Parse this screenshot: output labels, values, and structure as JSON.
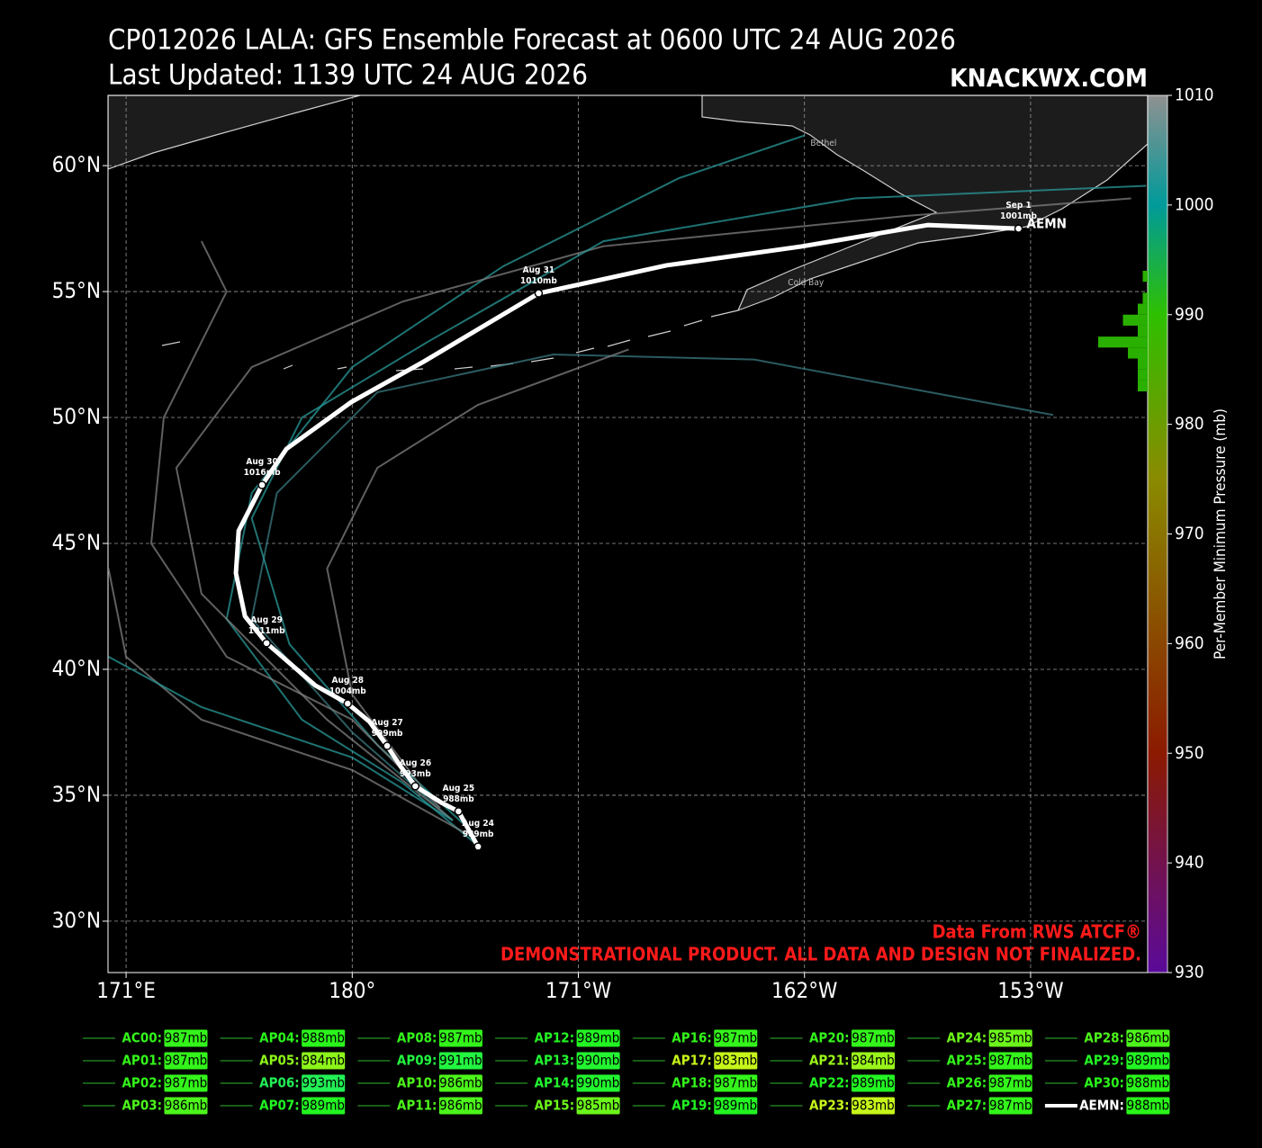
{
  "title": "CP012026 LALA: GFS Ensemble Forecast at 0600 UTC 24 AUG 2026",
  "subtitle": "Last Updated: 1139 UTC 24 AUG 2026",
  "watermark": "KNACKWX.COM",
  "credit": "Data From RWS ATCF®",
  "disclaimer": "DEMONSTRATIONAL PRODUCT. ALL DATA AND DESIGN NOT FINALIZED.",
  "chart_data": {
    "type": "track-map",
    "xlim": [
      170.28,
      211.66
    ],
    "ylim": [
      27.96,
      62.79
    ],
    "grid": true,
    "xticks": [
      {
        "value": 171,
        "label": "171°E"
      },
      {
        "value": 180,
        "label": "180°"
      },
      {
        "value": 189,
        "label": "171°W"
      },
      {
        "value": 198,
        "label": "162°W"
      },
      {
        "value": 207,
        "label": "153°W"
      }
    ],
    "yticks": [
      {
        "value": 30,
        "label": "30°N"
      },
      {
        "value": 35,
        "label": "35°N"
      },
      {
        "value": 40,
        "label": "40°N"
      },
      {
        "value": 45,
        "label": "45°N"
      },
      {
        "value": 50,
        "label": "50°N"
      },
      {
        "value": 55,
        "label": "55°N"
      },
      {
        "value": 60,
        "label": "60°N"
      }
    ],
    "places": [
      {
        "name": "Bethel",
        "lon": 198.24,
        "lat": 60.89
      },
      {
        "name": "Cold Bay",
        "lon": 197.34,
        "lat": 55.36
      }
    ],
    "mean_track": {
      "name": "AEMN",
      "color": "#ffffff",
      "lon": [
        185.01,
        184.23,
        183.54,
        182.51,
        181.93,
        181.39,
        180.68,
        179.82,
        178.53,
        177.09,
        176.59,
        175.73,
        175.37,
        175.48,
        176.41,
        177.38,
        179.96,
        182.83,
        187.42,
        192.51,
        197.88,
        202.9,
        206.52
      ],
      "lat": [
        32.96,
        34.36,
        34.71,
        35.36,
        36.14,
        36.96,
        37.93,
        38.64,
        39.36,
        40.61,
        41.04,
        42.11,
        43.82,
        45.5,
        47.32,
        48.75,
        50.61,
        52.21,
        54.93,
        56.04,
        56.79,
        57.64,
        57.5
      ],
      "dates": [
        "Aug 24",
        "Aug 25",
        null,
        "Aug 26",
        null,
        "Aug 27",
        null,
        "Aug 28",
        null,
        null,
        "Aug 29",
        null,
        null,
        null,
        "Aug 30",
        null,
        null,
        null,
        "Aug 31",
        null,
        null,
        null,
        "Sep 1"
      ],
      "pressure": [
        989,
        988,
        null,
        993,
        null,
        999,
        null,
        1004,
        null,
        null,
        1011,
        null,
        null,
        null,
        1016,
        null,
        null,
        null,
        1010,
        null,
        null,
        null,
        1001
      ],
      "pressure_labels": [
        "989mb",
        "988mb",
        null,
        "993mb",
        null,
        "999mb",
        null,
        "1004mb",
        null,
        null,
        "1011mb",
        null,
        null,
        null,
        "1016mb",
        null,
        null,
        null,
        "1010mb",
        null,
        null,
        null,
        "1001mb"
      ]
    },
    "member_tracks": [
      {
        "color": "#2a9a9a",
        "lon": [
          185.0,
          182,
          178,
          175,
          176,
          180,
          186,
          193,
          198
        ],
        "lat": [
          33,
          35.5,
          38,
          42,
          47,
          52,
          56,
          59.5,
          61.2
        ]
      },
      {
        "color": "#808080",
        "lon": [
          184.5,
          180,
          174,
          171,
          170.3
        ],
        "lat": [
          33.5,
          36,
          38,
          40.5,
          44
        ]
      },
      {
        "color": "#3a7a80",
        "lon": [
          184,
          180,
          176,
          177,
          181,
          188,
          196,
          203,
          207.9
        ],
        "lat": [
          34,
          37.5,
          42,
          47,
          51,
          52.5,
          52.3,
          51,
          50.1
        ]
      },
      {
        "color": "#808080",
        "lon": [
          184,
          179,
          174,
          173,
          176,
          182,
          190,
          202,
          211
        ],
        "lat": [
          34,
          38,
          43,
          48,
          52,
          54.6,
          56.8,
          58,
          58.7
        ]
      },
      {
        "color": "#2a9a9a",
        "lon": [
          184.5,
          181,
          177.5,
          176,
          178,
          183,
          190,
          200,
          211.6
        ],
        "lat": [
          33.8,
          37,
          41,
          46,
          50,
          53,
          57,
          58.7,
          59.2
        ]
      },
      {
        "color": "#808080",
        "lon": [
          183.5,
          180,
          175,
          172,
          172.5,
          175,
          174
        ],
        "lat": [
          34.5,
          38,
          40.5,
          45,
          50,
          55,
          57
        ]
      },
      {
        "color": "#2a9a9a",
        "lon": [
          184,
          180,
          174,
          170.3
        ],
        "lat": [
          34,
          36.5,
          38.5,
          40.5
        ]
      },
      {
        "color": "#808080",
        "lon": [
          183,
          180,
          179,
          181,
          185,
          191
        ],
        "lat": [
          35,
          39,
          44,
          48,
          50.5,
          52.7
        ]
      }
    ],
    "colorbar": {
      "label": "Per-Member Minimum Pressure (mb)",
      "lim": [
        930,
        1010
      ],
      "ticks": [
        930,
        940,
        950,
        960,
        970,
        980,
        990,
        1000,
        1010
      ],
      "stops": [
        {
          "value": 930,
          "color": "#5a0a9a"
        },
        {
          "value": 950,
          "color": "#8b1a00"
        },
        {
          "value": 975,
          "color": "#8a8a00"
        },
        {
          "value": 990,
          "color": "#2ec000"
        },
        {
          "value": 1000,
          "color": "#009a9a"
        },
        {
          "value": 1010,
          "color": "#909090"
        }
      ]
    },
    "histogram": {
      "color": "#2ab000",
      "bins": [
        983,
        984,
        985,
        986,
        987,
        988,
        989,
        990,
        991,
        992,
        993,
        994
      ],
      "counts": [
        2,
        2,
        2,
        4,
        10,
        2,
        5,
        2,
        1,
        0,
        1
      ]
    },
    "legend": {
      "members": [
        {
          "name": "AC00:",
          "value": 987,
          "value_label": "987mb",
          "color": "#33f51a"
        },
        {
          "name": "AP01:",
          "value": 987,
          "value_label": "987mb",
          "color": "#33f51a"
        },
        {
          "name": "AP02:",
          "value": 987,
          "value_label": "987mb",
          "color": "#33f51a"
        },
        {
          "name": "AP03:",
          "value": 986,
          "value_label": "986mb",
          "color": "#4cf51a"
        },
        {
          "name": "AP04:",
          "value": 988,
          "value_label": "988mb",
          "color": "#2af51a"
        },
        {
          "name": "AP05:",
          "value": 984,
          "value_label": "984mb",
          "color": "#8cf51a"
        },
        {
          "name": "AP06:",
          "value": 993,
          "value_label": "993mb",
          "color": "#22f055"
        },
        {
          "name": "AP07:",
          "value": 989,
          "value_label": "989mb",
          "color": "#22f522"
        },
        {
          "name": "AP08:",
          "value": 987,
          "value_label": "987mb",
          "color": "#33f51a"
        },
        {
          "name": "AP09:",
          "value": 991,
          "value_label": "991mb",
          "color": "#22f540"
        },
        {
          "name": "AP10:",
          "value": 986,
          "value_label": "986mb",
          "color": "#4cf51a"
        },
        {
          "name": "AP11:",
          "value": 986,
          "value_label": "986mb",
          "color": "#4cf51a"
        },
        {
          "name": "AP12:",
          "value": 989,
          "value_label": "989mb",
          "color": "#22f522"
        },
        {
          "name": "AP13:",
          "value": 990,
          "value_label": "990mb",
          "color": "#22f530"
        },
        {
          "name": "AP14:",
          "value": 990,
          "value_label": "990mb",
          "color": "#22f530"
        },
        {
          "name": "AP15:",
          "value": 985,
          "value_label": "985mb",
          "color": "#6cf51a"
        },
        {
          "name": "AP16:",
          "value": 987,
          "value_label": "987mb",
          "color": "#33f51a"
        },
        {
          "name": "AP17:",
          "value": 983,
          "value_label": "983mb",
          "color": "#c6f51a"
        },
        {
          "name": "AP18:",
          "value": 987,
          "value_label": "987mb",
          "color": "#33f51a"
        },
        {
          "name": "AP19:",
          "value": 989,
          "value_label": "989mb",
          "color": "#22f522"
        },
        {
          "name": "AP20:",
          "value": 987,
          "value_label": "987mb",
          "color": "#33f51a"
        },
        {
          "name": "AP21:",
          "value": 984,
          "value_label": "984mb",
          "color": "#9af51a"
        },
        {
          "name": "AP22:",
          "value": 989,
          "value_label": "989mb",
          "color": "#22f522"
        },
        {
          "name": "AP23:",
          "value": 983,
          "value_label": "983mb",
          "color": "#c6f51a"
        },
        {
          "name": "AP24:",
          "value": 985,
          "value_label": "985mb",
          "color": "#6cf51a"
        },
        {
          "name": "AP25:",
          "value": 987,
          "value_label": "987mb",
          "color": "#33f51a"
        },
        {
          "name": "AP26:",
          "value": 987,
          "value_label": "987mb",
          "color": "#33f51a"
        },
        {
          "name": "AP27:",
          "value": 987,
          "value_label": "987mb",
          "color": "#33f51a"
        },
        {
          "name": "AP28:",
          "value": 986,
          "value_label": "986mb",
          "color": "#4cf51a"
        },
        {
          "name": "AP29:",
          "value": 989,
          "value_label": "989mb",
          "color": "#22f522"
        },
        {
          "name": "AP30:",
          "value": 988,
          "value_label": "988mb",
          "color": "#2af51a"
        },
        {
          "name": "AEMN:",
          "value": 988,
          "value_label": "988mb",
          "color": "#2af51a",
          "name_color": "#ffffff",
          "line_color": "#ffffff"
        }
      ]
    }
  }
}
